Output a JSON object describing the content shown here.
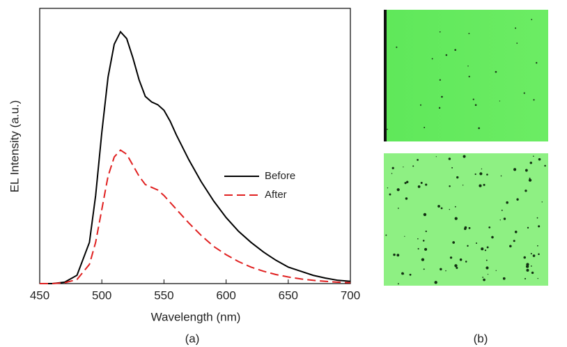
{
  "chart_data": {
    "type": "line",
    "xlabel": "Wavelength (nm)",
    "ylabel": "EL Intensity (a.u.)",
    "x": [
      450,
      460,
      470,
      480,
      490,
      495,
      500,
      505,
      510,
      515,
      520,
      525,
      530,
      535,
      540,
      545,
      550,
      555,
      560,
      570,
      580,
      590,
      600,
      610,
      620,
      630,
      640,
      650,
      660,
      670,
      680,
      690,
      700
    ],
    "series": [
      {
        "name": "Before",
        "color": "#000000",
        "dash": false,
        "values": [
          0,
          0,
          0.005,
          0.03,
          0.15,
          0.32,
          0.55,
          0.75,
          0.87,
          0.915,
          0.89,
          0.82,
          0.74,
          0.68,
          0.66,
          0.65,
          0.63,
          0.59,
          0.54,
          0.45,
          0.37,
          0.3,
          0.24,
          0.19,
          0.15,
          0.115,
          0.085,
          0.06,
          0.045,
          0.03,
          0.02,
          0.012,
          0.008
        ]
      },
      {
        "name": "After",
        "color": "#e02020",
        "dash": true,
        "values": [
          0,
          0,
          0.003,
          0.015,
          0.07,
          0.15,
          0.27,
          0.39,
          0.46,
          0.485,
          0.47,
          0.43,
          0.39,
          0.36,
          0.35,
          0.34,
          0.32,
          0.295,
          0.27,
          0.22,
          0.175,
          0.135,
          0.105,
          0.08,
          0.06,
          0.045,
          0.033,
          0.024,
          0.017,
          0.012,
          0.008,
          0.005,
          0.003
        ]
      }
    ],
    "xlim": [
      450,
      700
    ],
    "xticks": [
      450,
      500,
      550,
      600,
      650,
      700
    ],
    "ylim": [
      0,
      1
    ]
  },
  "captions": [
    "(a)",
    "(b)"
  ]
}
